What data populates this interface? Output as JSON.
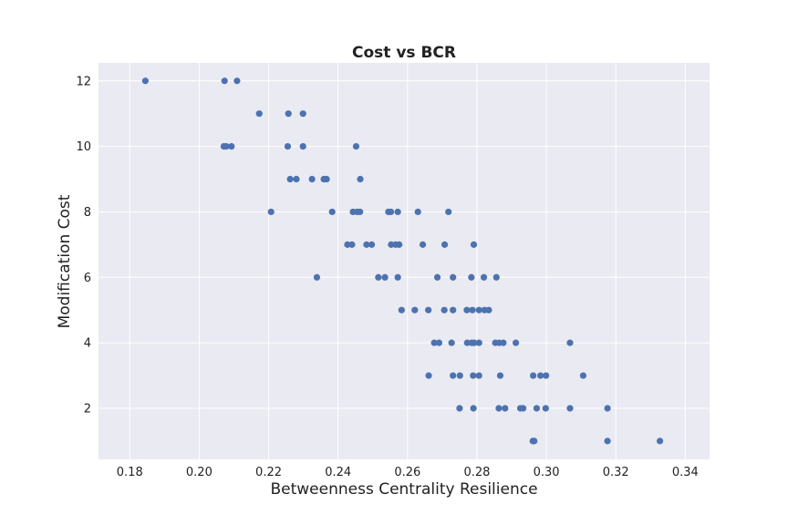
{
  "chart_data": {
    "type": "scatter",
    "title": "Cost vs BCR",
    "xlabel": "Betweenness Centrality Resilience",
    "ylabel": "Modification Cost",
    "xlim": [
      0.171,
      0.347
    ],
    "ylim": [
      0.44,
      12.55
    ],
    "xticks": [
      0.18,
      0.2,
      0.22,
      0.24,
      0.26,
      0.28,
      0.3,
      0.32,
      0.34
    ],
    "xtick_labels": [
      "0.18",
      "0.20",
      "0.22",
      "0.24",
      "0.26",
      "0.28",
      "0.30",
      "0.32",
      "0.34"
    ],
    "yticks": [
      2,
      4,
      6,
      8,
      10,
      12
    ],
    "ytick_labels": [
      "2",
      "4",
      "6",
      "8",
      "10",
      "12"
    ],
    "grid": true,
    "color": "#4c72b0",
    "series": [
      {
        "x": [
          0.1845,
          0.2073,
          0.2109,
          0.2173,
          0.2257,
          0.2299,
          0.2071,
          0.2078,
          0.2093,
          0.2255,
          0.2299,
          0.2452,
          0.2262,
          0.228,
          0.2325,
          0.2359,
          0.2367,
          0.2464,
          0.2207,
          0.2383,
          0.2443,
          0.2455,
          0.2463,
          0.2545,
          0.2552,
          0.2572,
          0.263,
          0.2718,
          0.2427,
          0.244,
          0.2482,
          0.2497,
          0.2553,
          0.2566,
          0.2576,
          0.2644,
          0.2707,
          0.2791,
          0.2339,
          0.2516,
          0.2535,
          0.2572,
          0.2686,
          0.2731,
          0.2784,
          0.282,
          0.2856,
          0.2583,
          0.2621,
          0.266,
          0.2706,
          0.2731,
          0.2771,
          0.2787,
          0.2806,
          0.2822,
          0.2834,
          0.2677,
          0.2691,
          0.2727,
          0.2772,
          0.2785,
          0.2792,
          0.2806,
          0.2853,
          0.2864,
          0.2876,
          0.2912,
          0.3068,
          0.2661,
          0.2731,
          0.2751,
          0.2789,
          0.2806,
          0.2867,
          0.2962,
          0.2983,
          0.2999,
          0.3106,
          0.275,
          0.279,
          0.2863,
          0.2881,
          0.2925,
          0.2933,
          0.2972,
          0.2998,
          0.3068,
          0.3176,
          0.2961,
          0.2965,
          0.3176,
          0.3327
        ],
        "y": [
          12,
          12,
          12,
          11,
          11,
          11,
          10,
          10,
          10,
          10,
          10,
          10,
          9,
          9,
          9,
          9,
          9,
          9,
          8,
          8,
          8,
          8,
          8,
          8,
          8,
          8,
          8,
          8,
          7,
          7,
          7,
          7,
          7,
          7,
          7,
          7,
          7,
          7,
          6,
          6,
          6,
          6,
          6,
          6,
          6,
          6,
          6,
          5,
          5,
          5,
          5,
          5,
          5,
          5,
          5,
          5,
          5,
          4,
          4,
          4,
          4,
          4,
          4,
          4,
          4,
          4,
          4,
          4,
          4,
          3,
          3,
          3,
          3,
          3,
          3,
          3,
          3,
          3,
          3,
          2,
          2,
          2,
          2,
          2,
          2,
          2,
          2,
          2,
          2,
          1,
          1,
          1,
          1
        ]
      }
    ]
  }
}
